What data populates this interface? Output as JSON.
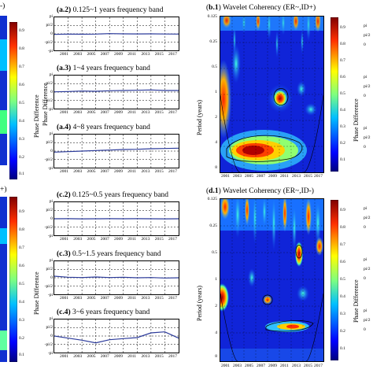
{
  "left_strip": {
    "cbar_ticks": [
      "0.9",
      "0.8",
      "0.7",
      "0.6",
      "0.5",
      "0.4",
      "0.3",
      "0.2",
      "0.1"
    ],
    "top_label_fragment": "-)",
    "bottom_label_fragment": "+)",
    "axis_label": "Phase Difference"
  },
  "phase_ticks": [
    "pi",
    "pi/2",
    "0",
    "-pi/2",
    "-pi"
  ],
  "year_ticks": [
    "2001",
    "2003",
    "2005",
    "2007",
    "2009",
    "2011",
    "2013",
    "2015",
    "2017"
  ],
  "middle_panels": [
    {
      "id": "a.2",
      "title": "0.125~1 years frequency band"
    },
    {
      "id": "a.3",
      "title": "1~4 years frequency band"
    },
    {
      "id": "a.4",
      "title": "4~8 years frequency band"
    },
    {
      "id": "c.2",
      "title": "0.125~0.5 years frequency band"
    },
    {
      "id": "c.3",
      "title": "0.5~1.5 years frequency band"
    },
    {
      "id": "c.4",
      "title": "3~6 years frequency band"
    }
  ],
  "wavelet_panels": [
    {
      "id": "b.1",
      "title": "Wavelet Coherency (ER~,ID+)"
    },
    {
      "id": "d.1",
      "title": "Wavelet Coherency (ER~,ID-)"
    }
  ],
  "period_label": "Period (years)",
  "period_ticks": [
    "0.125",
    "0.25",
    "0.5",
    "1",
    "2",
    "4",
    "8"
  ],
  "cbar_ticks": [
    "0.9",
    "0.8",
    "0.7",
    "0.6",
    "0.5",
    "0.4",
    "0.3",
    "0.2",
    "0.1"
  ],
  "right_edge_label": "Phase Difference",
  "chart_data": [
    {
      "type": "line",
      "panel": "a.2",
      "title": "0.125~1 years frequency band",
      "ylabel": "Phase Difference",
      "x": [
        2000,
        2002,
        2004,
        2006,
        2008,
        2010,
        2012,
        2014,
        2016,
        2018
      ],
      "y": [
        -0.1,
        -0.05,
        -0.08,
        -0.05,
        0.05,
        0.0,
        -0.02,
        0.0,
        -0.03,
        -0.05
      ]
    },
    {
      "type": "line",
      "panel": "a.3",
      "title": "1~4 years frequency band",
      "x": [
        2000,
        2002,
        2004,
        2006,
        2008,
        2010,
        2012,
        2014,
        2016,
        2018
      ],
      "y": [
        0.05,
        0.1,
        0.2,
        0.15,
        0.25,
        0.3,
        0.35,
        0.4,
        0.3,
        0.3
      ]
    },
    {
      "type": "line",
      "panel": "a.4",
      "title": "4~8 years frequency band",
      "x": [
        2000,
        2002,
        2004,
        2006,
        2008,
        2010,
        2012,
        2014,
        2016,
        2018
      ],
      "y": [
        -0.2,
        -0.1,
        0.0,
        0.1,
        0.2,
        0.3,
        0.35,
        0.45,
        0.5,
        0.55
      ]
    },
    {
      "type": "line",
      "panel": "c.2",
      "title": "0.125~0.5 years frequency band",
      "x": [
        2000,
        2002,
        2004,
        2006,
        2008,
        2010,
        2012,
        2014,
        2016,
        2018
      ],
      "y": [
        0.0,
        0.02,
        -0.02,
        0.0,
        0.01,
        0.0,
        0.02,
        0.0,
        -0.01,
        0.0
      ]
    },
    {
      "type": "line",
      "panel": "c.3",
      "title": "0.5~1.5 years frequency band",
      "x": [
        2000,
        2002,
        2004,
        2006,
        2008,
        2010,
        2012,
        2014,
        2016,
        2018
      ],
      "y": [
        0.3,
        0.1,
        0.05,
        0.15,
        0.05,
        0.1,
        0.0,
        0.05,
        -0.05,
        0.0
      ]
    },
    {
      "type": "line",
      "panel": "c.4",
      "title": "3~6 years frequency band",
      "x": [
        2000,
        2002,
        2004,
        2006,
        2008,
        2010,
        2012,
        2014,
        2016,
        2018
      ],
      "y": [
        0.0,
        -0.4,
        -0.8,
        -1.3,
        -0.7,
        -0.5,
        -0.3,
        0.6,
        0.8,
        -0.4
      ]
    },
    {
      "type": "heatmap",
      "panel": "b.1",
      "title": "Wavelet Coherency (ER~,ID+)",
      "ylabel": "Period (years)",
      "zlim": [
        0,
        1
      ]
    },
    {
      "type": "heatmap",
      "panel": "d.1",
      "title": "Wavelet Coherency (ER~,ID-)",
      "ylabel": "Period (years)",
      "zlim": [
        0,
        1
      ]
    }
  ],
  "colors": {
    "line": "#2b3a9a",
    "background_low": "#1010b8",
    "high": "#b00000"
  }
}
